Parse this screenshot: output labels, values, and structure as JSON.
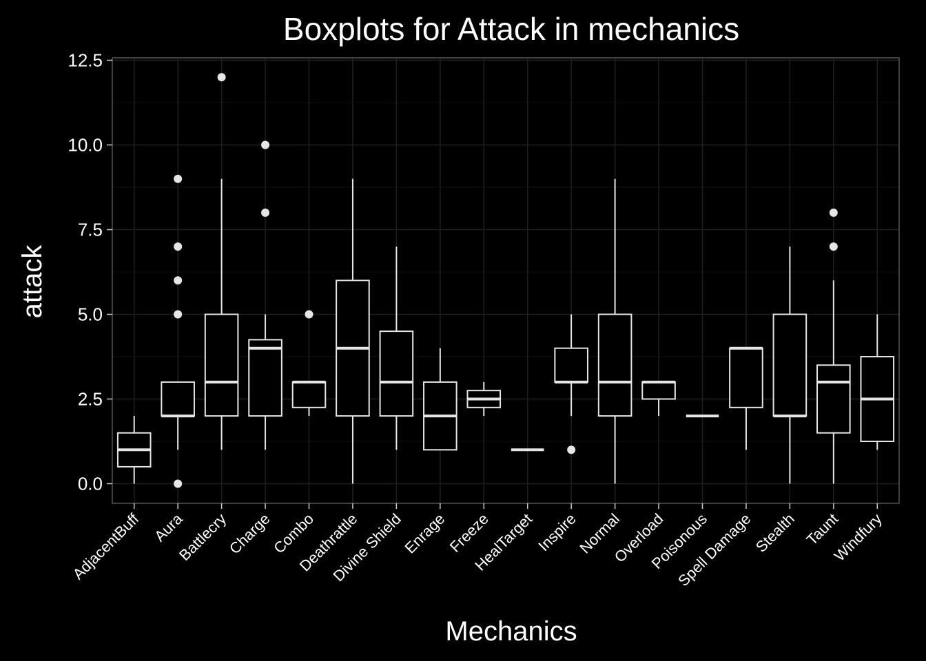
{
  "chart_data": {
    "type": "box",
    "title": "Boxplots for Attack in mechanics",
    "xlabel": "Mechanics",
    "ylabel": "attack",
    "ylim": [
      -0.6,
      12.6
    ],
    "yticks": [
      "0.0",
      "2.5",
      "5.0",
      "7.5",
      "10.0",
      "12.5"
    ],
    "ytick_values": [
      0,
      2.5,
      5,
      7.5,
      10,
      12.5
    ],
    "grid": true,
    "colors": {
      "background": "#000000",
      "panel": "#000000",
      "grid_major": "#1f1f1f",
      "grid_minor": "#111111",
      "box": "#e6e6e6",
      "text": "#ffffff"
    },
    "categories": [
      "AdjacentBuff",
      "Aura",
      "Battlecry",
      "Charge",
      "Combo",
      "Deathrattle",
      "Divine Shield",
      "Enrage",
      "Freeze",
      "HealTarget",
      "Inspire",
      "Normal",
      "Overload",
      "Poisonous",
      "Spell Damage",
      "Stealth",
      "Taunt",
      "Windfury"
    ],
    "boxes": [
      {
        "min": 0,
        "q1": 0.5,
        "median": 1,
        "q3": 1.5,
        "max": 2,
        "outliers": []
      },
      {
        "min": 1,
        "q1": 2,
        "median": 2,
        "q3": 3,
        "max": 3,
        "outliers": [
          0,
          5,
          6,
          7,
          9
        ]
      },
      {
        "min": 1,
        "q1": 2,
        "median": 3,
        "q3": 5,
        "max": 9,
        "outliers": [
          12
        ]
      },
      {
        "min": 1,
        "q1": 2,
        "median": 4,
        "q3": 4.25,
        "max": 5,
        "outliers": [
          8,
          10
        ]
      },
      {
        "min": 2,
        "q1": 2.25,
        "median": 3,
        "q3": 3,
        "max": 3,
        "outliers": [
          5
        ]
      },
      {
        "min": 0,
        "q1": 2,
        "median": 4,
        "q3": 6,
        "max": 9,
        "outliers": []
      },
      {
        "min": 1,
        "q1": 2,
        "median": 3,
        "q3": 4.5,
        "max": 7,
        "outliers": []
      },
      {
        "min": 1,
        "q1": 1,
        "median": 2,
        "q3": 3,
        "max": 4,
        "outliers": []
      },
      {
        "min": 2,
        "q1": 2.25,
        "median": 2.5,
        "q3": 2.75,
        "max": 3,
        "outliers": []
      },
      {
        "min": 1,
        "q1": 1,
        "median": 1,
        "q3": 1,
        "max": 1,
        "outliers": []
      },
      {
        "min": 2,
        "q1": 3,
        "median": 3,
        "q3": 4,
        "max": 5,
        "outliers": [
          1
        ]
      },
      {
        "min": 0,
        "q1": 2,
        "median": 3,
        "q3": 5,
        "max": 9,
        "outliers": []
      },
      {
        "min": 2,
        "q1": 2.5,
        "median": 3,
        "q3": 3,
        "max": 3,
        "outliers": []
      },
      {
        "min": 2,
        "q1": 2,
        "median": 2,
        "q3": 2,
        "max": 2,
        "outliers": []
      },
      {
        "min": 1,
        "q1": 2.25,
        "median": 4,
        "q3": 4,
        "max": 4,
        "outliers": []
      },
      {
        "min": 0,
        "q1": 2,
        "median": 2,
        "q3": 5,
        "max": 7,
        "outliers": []
      },
      {
        "min": 0,
        "q1": 1.5,
        "median": 3,
        "q3": 3.5,
        "max": 6,
        "outliers": [
          7,
          8
        ]
      },
      {
        "min": 1,
        "q1": 1.25,
        "median": 2.5,
        "q3": 3.75,
        "max": 5,
        "outliers": []
      }
    ]
  }
}
